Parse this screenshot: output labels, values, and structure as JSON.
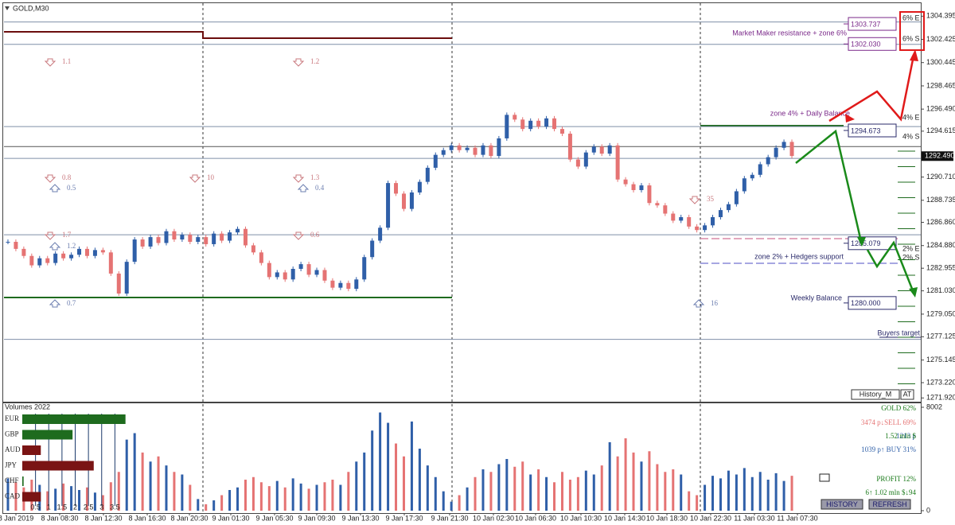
{
  "chart_data": {
    "type": "candlestick",
    "title": "GOLD,M30",
    "close": [
      1285.2,
      1284.6,
      1284.0,
      1283.2,
      1283.8,
      1283.4,
      1284.2,
      1283.8,
      1284.1,
      1284.6,
      1284.0,
      1284.5,
      1284.3,
      1282.5,
      1280.8,
      1283.5,
      1285.4,
      1284.8,
      1285.6,
      1285.1,
      1286.1,
      1285.4,
      1285.8,
      1285.2,
      1285.6,
      1285.0,
      1285.9,
      1285.3,
      1286.0,
      1286.3,
      1284.9,
      1284.3,
      1283.4,
      1282.2,
      1282.6,
      1282.0,
      1282.9,
      1283.3,
      1282.4,
      1282.8,
      1281.9,
      1281.3,
      1281.7,
      1281.2,
      1282.0,
      1283.9,
      1285.3,
      1286.4,
      1290.2,
      1289.3,
      1288.0,
      1289.4,
      1290.3,
      1291.5,
      1292.6,
      1293.0,
      1293.4,
      1293.0,
      1293.2,
      1292.6,
      1293.4,
      1292.5,
      1294.0,
      1296.0,
      1295.6,
      1294.8,
      1295.5,
      1295.0,
      1295.7,
      1294.8,
      1294.4,
      1292.2,
      1291.6,
      1292.8,
      1293.3,
      1292.7,
      1293.4,
      1290.5,
      1290.1,
      1289.6,
      1290.0,
      1288.5,
      1288.3,
      1287.6,
      1287.0,
      1287.3,
      1286.5,
      1286.2,
      1286.6,
      1287.3,
      1287.9,
      1288.4,
      1289.5,
      1290.6,
      1290.9,
      1291.8,
      1292.4,
      1293.2,
      1293.7,
      1292.5
    ],
    "up_color": "#2f5fa8",
    "down_color": "#e57373",
    "x_labels": [
      "8 Jan 2019",
      "8 Jan 08:30",
      "8 Jan 12:30",
      "8 Jan 16:30",
      "8 Jan 20:30",
      "9 Jan 01:30",
      "9 Jan 05:30",
      "9 Jan 09:30",
      "9 Jan 13:30",
      "9 Jan 17:30",
      "9 Jan 21:30",
      "10 Jan 02:30",
      "10 Jan 06:30",
      "10 Jan 10:30",
      "10 Jan 14:30",
      "10 Jan 18:30",
      "10 Jan 22:30",
      "11 Jan 03:30",
      "11 Jan 07:30"
    ],
    "ylim": [
      1271.6,
      1305.5
    ],
    "yticks": [
      1304.395,
      1302.425,
      1300.445,
      1298.465,
      {
        "value": 1296.49,
        "label": "1296.490"
      },
      1294.615,
      {
        "value": 1290.71,
        "label": "1290.710"
      },
      1288.735,
      {
        "value": 1286.86,
        "label": "1286.860"
      },
      {
        "value": 1284.88,
        "label": "1284.880"
      },
      1282.955,
      {
        "value": 1281.03,
        "label": "1281.030"
      },
      {
        "value": 1279.05,
        "label": "1279.050"
      },
      1277.125,
      1275.145,
      {
        "value": 1273.22,
        "label": "1273.220"
      },
      {
        "value": 1271.92,
        "label": "1271.920"
      }
    ],
    "current_price": {
      "value": 1292.49,
      "label": "1292.490"
    },
    "levels": [
      {
        "value": 1303.737,
        "label": "1303.737",
        "color": "#7b2a8a"
      },
      {
        "value": 1302.03,
        "label": "1302.030",
        "color": "#7b2a8a"
      },
      {
        "value": 1294.673,
        "label": "1294.673",
        "color": "#2a2a6a"
      },
      {
        "value": 1285.079,
        "label": "1285.079",
        "color": "#2a2a6a"
      },
      {
        "value": 1280.0,
        "label": "1280.000",
        "color": "#2a2a6a"
      }
    ],
    "lines": [
      {
        "value": 1303.9,
        "color": "#7f8fa8"
      },
      {
        "value": 1302.0,
        "color": "#7f8fa8"
      },
      {
        "value": 1295.0,
        "color": "#7f8fa8"
      },
      {
        "value": 1293.3,
        "color": "#555555"
      },
      {
        "value": 1292.3,
        "color": "#7f8fa8"
      },
      {
        "value": 1285.8,
        "color": "#7f8fa8"
      },
      {
        "value": 1276.9,
        "color": "#7f8fa8"
      }
    ],
    "annotations": [
      {
        "text": "Market Maker resistance + zone 6%",
        "color": "#7b2a8a"
      },
      {
        "text": "zone 4% + Daily Balance",
        "color": "#7b2a8a"
      },
      {
        "text": "zone 2% + Hedgers support",
        "color": "#2a2a6a"
      },
      {
        "text": "Weekly Balance",
        "color": "#2a2a6a"
      },
      {
        "text": "Buyers target",
        "color": "#2a2a6a"
      }
    ],
    "zone_labels": [
      "6% E",
      "6% S",
      "4% E",
      "4% S",
      "2% E",
      "2% S"
    ],
    "markers": [
      "1.1",
      "1.2",
      "0.8",
      "0.5",
      "10",
      "1.3",
      "0.4",
      "1.7",
      "1.2",
      "0.6",
      "0.7",
      "35",
      "16"
    ],
    "volume": {
      "title": "Volumes 2022",
      "values": [
        2500,
        2200,
        1800,
        2400,
        2000,
        1500,
        1700,
        2100,
        1900,
        1600,
        1800,
        1400,
        1200,
        2200,
        3000,
        5500,
        6000,
        4500,
        3800,
        4200,
        3500,
        3000,
        2800,
        2000,
        900,
        500,
        800,
        1200,
        1600,
        1800,
        2400,
        2600,
        2200,
        1900,
        2300,
        1800,
        2500,
        2100,
        1700,
        2000,
        2200,
        2400,
        2000,
        3000,
        3800,
        4500,
        6200,
        7600,
        6800,
        5200,
        4200,
        6900,
        4800,
        3500,
        2600,
        1500,
        700,
        1200,
        1800,
        2600,
        3200,
        3000,
        3600,
        4000,
        3400,
        3800,
        2800,
        3200,
        2600,
        2200,
        3000,
        2400,
        2600,
        3100,
        2800,
        3500,
        5300,
        4200,
        5600,
        4500,
        3800,
        4600,
        3600,
        3000,
        3200,
        2800,
        1500,
        1200,
        2000,
        2700,
        2500,
        3100,
        2800,
        3300,
        2600,
        3000,
        2400,
        2900,
        2300,
        2700
      ],
      "ylim": [
        0,
        8002
      ],
      "yticks": [
        8002,
        0
      ]
    },
    "currencies": {
      "categories": [
        "EUR",
        "GBP",
        "AUD",
        "JPY",
        "CHF",
        "CAD"
      ],
      "values": [
        3.9,
        1.9,
        0.7,
        2.7,
        0.05,
        0.7
      ],
      "colors": [
        "#1e6b1e",
        "#1e6b1e",
        "#7a1414",
        "#7a1414",
        "#1e6b1e",
        "#7a1414"
      ],
      "xlim": [
        0,
        4
      ],
      "xticks": [
        0.5,
        1,
        1.5,
        2,
        2.5,
        3,
        3.5
      ]
    },
    "panel": {
      "title": "GOLD 62%",
      "sell": "3474 p↓SELL 69%",
      "positions": "1213 p",
      "volume": "1.52 mln $",
      "buy": "1039 p↑ BUY 31%",
      "profit": "PROFIT 12%",
      "profit_detail": "6↑  1.02 mln $↓94",
      "buttons": [
        "HISTORY",
        "REFRESH"
      ],
      "tabs": [
        "History_M",
        "AT"
      ]
    }
  }
}
